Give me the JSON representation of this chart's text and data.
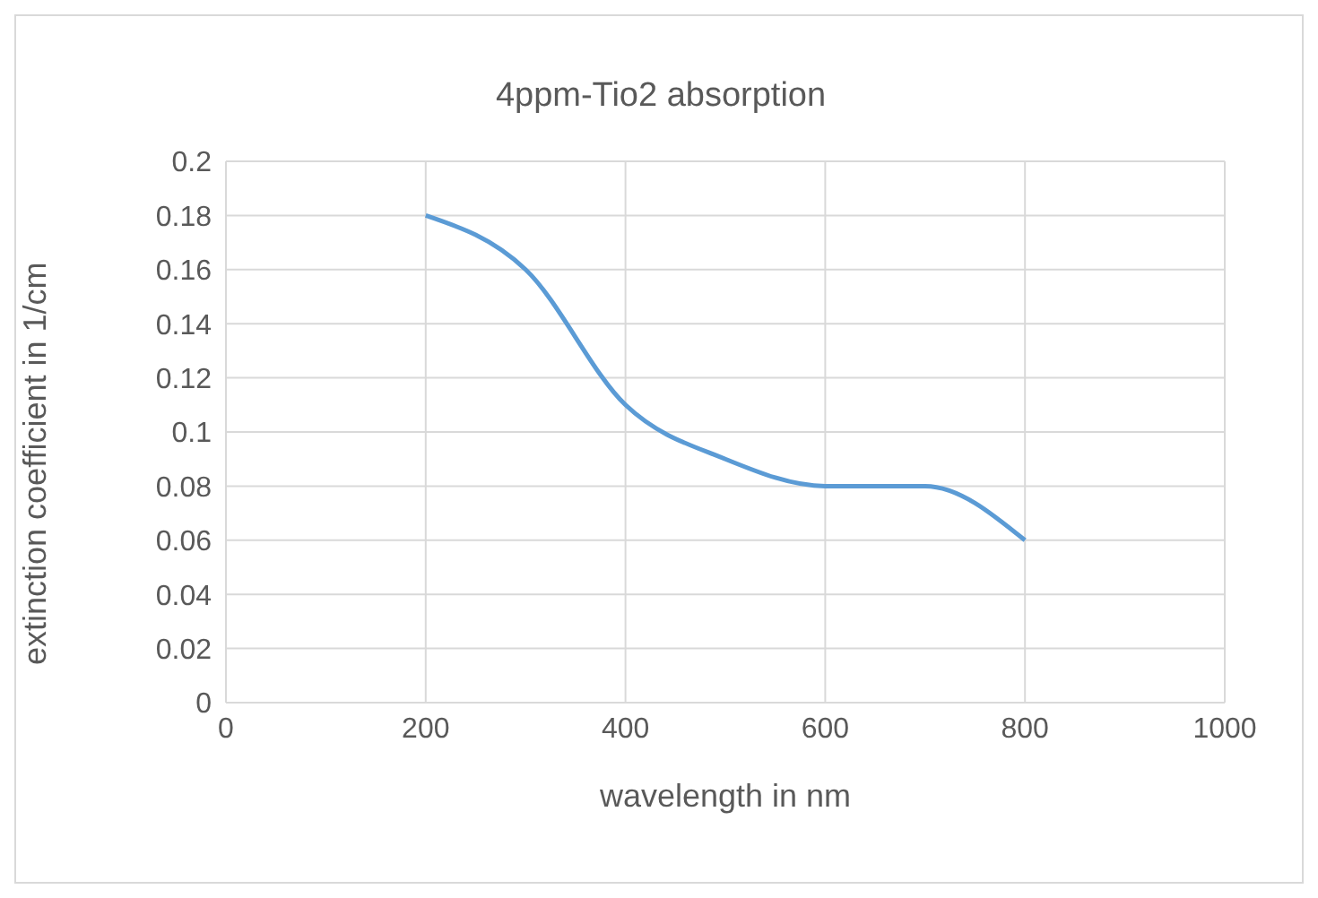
{
  "chart_data": {
    "type": "line",
    "title": "4ppm-Tio2 absorption",
    "xlabel": "wavelength in nm",
    "ylabel": "extinction coefficient in 1/cm",
    "x": [
      200,
      300,
      400,
      500,
      600,
      700,
      800
    ],
    "series": [
      {
        "color": "#5b9bd5",
        "values": [
          0.18,
          0.16,
          0.11,
          0.09,
          0.08,
          0.08,
          0.06
        ]
      }
    ],
    "xlim": [
      0,
      1000
    ],
    "xticks": [
      0,
      200,
      400,
      600,
      800,
      1000
    ],
    "ylim": [
      0,
      0.2
    ],
    "yticks": [
      0,
      0.02,
      0.04,
      0.06,
      0.08,
      0.1,
      0.12,
      0.14,
      0.16,
      0.18,
      0.2
    ],
    "grid": true,
    "legend": false,
    "marker": "none",
    "line_style": "solid"
  }
}
